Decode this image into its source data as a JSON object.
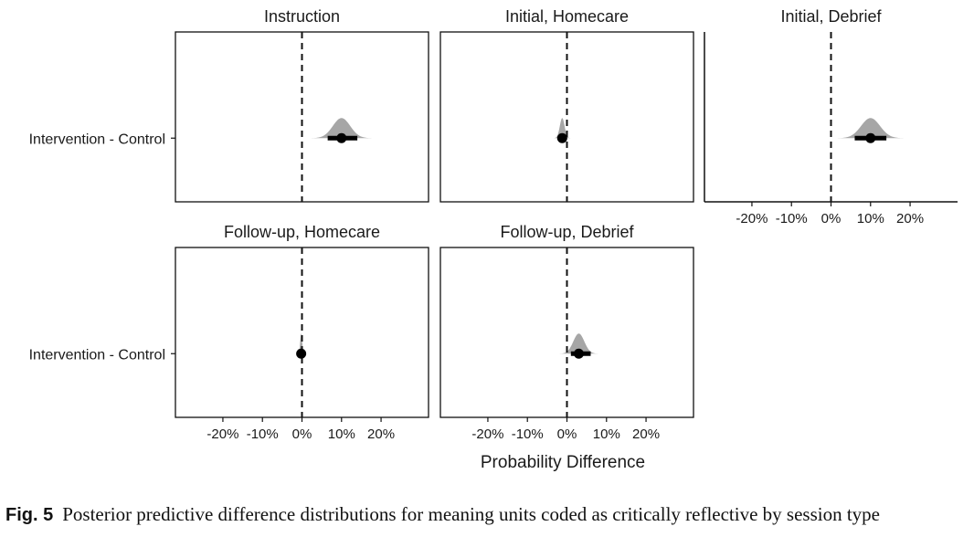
{
  "chart_data": {
    "type": "density-interval",
    "x_label": "Probability Difference",
    "y_category": "Intervention - Control",
    "x_ticks": [
      "-20%",
      "-10%",
      "0%",
      "10%",
      "20%"
    ],
    "x_tick_values": [
      -0.2,
      -0.1,
      0,
      0.1,
      0.2
    ],
    "xlim": [
      -0.32,
      0.32
    ],
    "reference_line": 0,
    "panels": [
      {
        "title": "Instruction",
        "median": 0.1,
        "interval": [
          0.065,
          0.14
        ],
        "spread": 0.022
      },
      {
        "title": "Initial, Homecare",
        "median": -0.012,
        "interval": [
          -0.022,
          -0.002
        ],
        "spread": 0.006
      },
      {
        "title": "Initial, Debrief",
        "median": 0.1,
        "interval": [
          0.06,
          0.14
        ],
        "spread": 0.024
      },
      {
        "title": "Follow-up, Homecare",
        "median": -0.002,
        "interval": [
          -0.006,
          0.003
        ],
        "spread": 0.0025
      },
      {
        "title": "Follow-up, Debrief",
        "median": 0.03,
        "interval": [
          0.01,
          0.06
        ],
        "spread": 0.014
      }
    ]
  },
  "caption": {
    "label": "Fig. 5",
    "text": "Posterior predictive difference distributions for meaning units coded as critically reflective by session type"
  }
}
